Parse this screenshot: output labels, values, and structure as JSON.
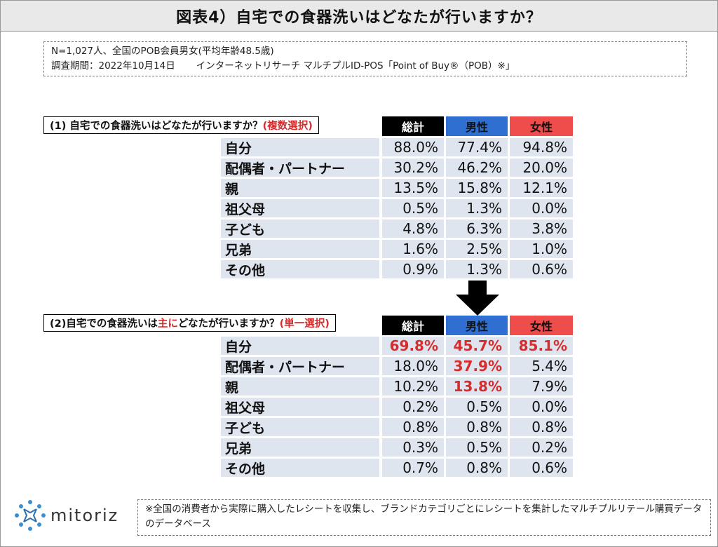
{
  "title": "図表4）自宅での食器洗いはどなたが行いますか？",
  "info": {
    "line1": "N=1,027人、全国のPOB会員男女(平均年齢48.5歳)",
    "line2a": "調査期間：2022年10月14日",
    "line2b": "インターネットリサーチ マルチプルID-POS「Point of Buy®（POB）※」"
  },
  "headers": {
    "total": "総計",
    "male": "男性",
    "female": "女性"
  },
  "q1": {
    "label": "(1) 自宅での食器洗いはどなたが行いますか？",
    "label_note": "(複数選択)",
    "rows": [
      {
        "label": "自分",
        "total": "88.0%",
        "male": "77.4%",
        "female": "94.8%"
      },
      {
        "label": "配偶者・パートナー",
        "total": "30.2%",
        "male": "46.2%",
        "female": "20.0%"
      },
      {
        "label": "親",
        "total": "13.5%",
        "male": "15.8%",
        "female": "12.1%"
      },
      {
        "label": "祖父母",
        "total": "0.5%",
        "male": "1.3%",
        "female": "0.0%"
      },
      {
        "label": "子ども",
        "total": "4.8%",
        "male": "6.3%",
        "female": "3.8%"
      },
      {
        "label": "兄弟",
        "total": "1.6%",
        "male": "2.5%",
        "female": "1.0%"
      },
      {
        "label": "その他",
        "total": "0.9%",
        "male": "1.3%",
        "female": "0.6%"
      }
    ]
  },
  "q2": {
    "label_a": "(2)自宅での食器洗いは",
    "label_em": "主に",
    "label_b": "どなたが行いますか？",
    "label_note": "(単一選択)",
    "rows": [
      {
        "label": "自分",
        "total": "69.8%",
        "male": "45.7%",
        "female": "85.1%"
      },
      {
        "label": "配偶者・パートナー",
        "total": "18.0%",
        "male": "37.9%",
        "female": "5.4%"
      },
      {
        "label": "親",
        "total": "10.2%",
        "male": "13.8%",
        "female": "7.9%"
      },
      {
        "label": "祖父母",
        "total": "0.2%",
        "male": "0.5%",
        "female": "0.0%"
      },
      {
        "label": "子ども",
        "total": "0.8%",
        "male": "0.8%",
        "female": "0.8%"
      },
      {
        "label": "兄弟",
        "total": "0.3%",
        "male": "0.5%",
        "female": "0.2%"
      },
      {
        "label": "その他",
        "total": "0.7%",
        "male": "0.8%",
        "female": "0.6%"
      }
    ]
  },
  "logo": {
    "text": "mitoriz"
  },
  "footnote": "※全国の消費者から実際に購入したレシートを収集し、ブランドカテゴリごとにレシートを集計したマルチプルリテール購買データのデータベース",
  "colors": {
    "total_header": "#000000",
    "male_header": "#2e6fd1",
    "female_header": "#ef4c4c",
    "highlight": "#d62c2c",
    "cell": "#dfe5ee"
  }
}
